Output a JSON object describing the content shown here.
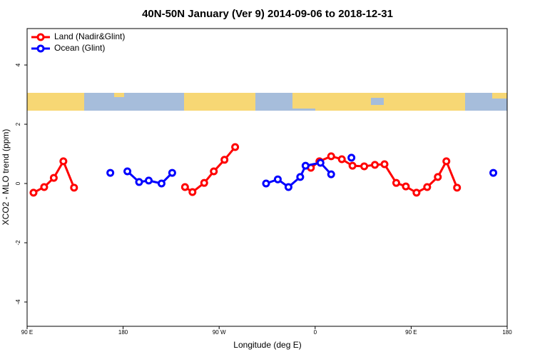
{
  "chart_data": {
    "type": "line",
    "title": "40N-50N January (Ver 9)   2014-09-06 to 2018-12-31",
    "x_label": "Longitude (deg E)",
    "y_label": "XCO2 - MLO trend (ppm)",
    "xlim": [
      90,
      540
    ],
    "ylim": [
      -4.82,
      5.23
    ],
    "xticks": [
      {
        "value": 90,
        "label": "90 E"
      },
      180,
      {
        "value": 270,
        "label": "90 W"
      },
      {
        "value": 360,
        "label": "0"
      },
      {
        "value": 450,
        "label": "90 E"
      },
      {
        "value": 540,
        "label": "180"
      }
    ],
    "yticks": [
      -4,
      -2,
      0,
      2,
      4
    ],
    "legend": "top-left",
    "series": [
      {
        "name": "Land (Nadir&Glint)",
        "color": "#ff0000",
        "x": [
          96,
          106,
          115,
          124,
          134,
          null,
          238,
          245,
          256,
          265,
          275,
          285,
          null,
          356,
          364,
          375,
          385,
          395,
          406,
          416,
          425,
          436,
          445,
          455,
          465,
          475,
          483,
          493
        ],
        "values": [
          -0.31,
          -0.12,
          0.19,
          0.75,
          -0.14,
          null,
          -0.12,
          -0.29,
          0.02,
          0.41,
          0.8,
          1.23,
          null,
          0.53,
          0.75,
          0.92,
          0.82,
          0.6,
          0.58,
          0.63,
          0.65,
          0.02,
          -0.1,
          -0.31,
          -0.12,
          0.22,
          0.75,
          -0.14
        ]
      },
      {
        "name": "Ocean (Glint)",
        "color": "#0000ff",
        "x": [
          168,
          null,
          184,
          195,
          204,
          216,
          226,
          null,
          314,
          325,
          335,
          346,
          351,
          365,
          375,
          null,
          394,
          null,
          527
        ],
        "values": [
          0.36,
          null,
          0.41,
          0.05,
          0.1,
          0.0,
          0.36,
          null,
          0.0,
          0.14,
          -0.12,
          0.22,
          0.6,
          0.7,
          0.31,
          null,
          0.87,
          null,
          0.36
        ]
      }
    ]
  }
}
